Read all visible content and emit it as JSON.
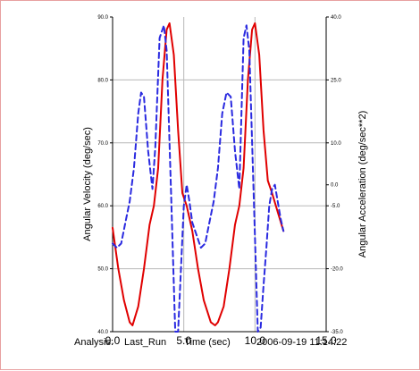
{
  "chart_data": {
    "type": "line",
    "x_axis": {
      "label": "Time (sec)",
      "ticks": [
        "0.0",
        "5.0",
        "10.0",
        "15.0"
      ],
      "range": [
        0,
        15
      ]
    },
    "y_left": {
      "label": "Angular Velocity (deg/sec)",
      "ticks": [
        "40.0",
        "50.0",
        "60.0",
        "70.0",
        "80.0",
        "90.0"
      ],
      "range": [
        40,
        90
      ]
    },
    "y_right": {
      "label": "Angular Acceleration (deg/sec**2)",
      "ticks": [
        "-35.0",
        "-20.0",
        "-5.0",
        "0.0",
        "10.0",
        "25.0",
        "40.0"
      ],
      "range": [
        -35,
        40
      ]
    },
    "grid": true,
    "series": [
      {
        "axis": "left",
        "color": "#e00000",
        "style": "solid",
        "x": [
          0.0,
          0.4,
          0.8,
          1.2,
          1.4,
          1.8,
          2.2,
          2.6,
          2.9,
          3.2,
          3.5,
          3.8,
          4.0,
          4.3,
          4.6,
          4.9,
          5.2,
          5.6,
          6.0,
          6.4,
          6.9,
          7.2,
          7.4,
          7.8,
          8.2,
          8.6,
          8.9,
          9.2,
          9.5,
          9.8,
          10.0,
          10.3,
          10.6,
          10.9,
          11.2,
          11.6,
          12.0
        ],
        "y": [
          56.5,
          50.0,
          45.0,
          41.5,
          41.0,
          44.0,
          50.0,
          57.0,
          60.0,
          66.0,
          80.0,
          88.0,
          89.0,
          84.0,
          72.0,
          62.0,
          60.0,
          56.0,
          50.0,
          45.0,
          41.5,
          41.0,
          41.5,
          44.0,
          50.0,
          57.0,
          60.0,
          66.0,
          80.0,
          88.0,
          89.0,
          84.0,
          72.0,
          64.0,
          62.0,
          59.0,
          56.0
        ]
      },
      {
        "axis": "right",
        "color": "#2a2ae0",
        "style": "dashed",
        "x": [
          0.0,
          0.3,
          0.6,
          0.9,
          1.2,
          1.5,
          1.8,
          2.0,
          2.2,
          2.5,
          2.8,
          3.0,
          3.3,
          3.6,
          3.8,
          4.1,
          4.4,
          4.6,
          4.8,
          5.0,
          5.2,
          5.4,
          5.6,
          5.9,
          6.2,
          6.5,
          6.8,
          7.1,
          7.4,
          7.7,
          8.0,
          8.3,
          8.6,
          8.9,
          9.2,
          9.4,
          9.6,
          9.9,
          10.2,
          10.4,
          10.6,
          10.8,
          11.0,
          11.2,
          11.4,
          11.6,
          11.8,
          12.0
        ],
        "y": [
          -14.0,
          -15.0,
          -14.0,
          -9.0,
          -4.0,
          4.0,
          17.0,
          22.0,
          21.0,
          8.0,
          -1.0,
          9.0,
          35.0,
          38.0,
          32.0,
          -1.0,
          -35.0,
          -35.0,
          -20.0,
          -5.0,
          0.0,
          -4.0,
          -9.0,
          -12.0,
          -15.0,
          -14.0,
          -9.0,
          -4.0,
          4.0,
          17.0,
          22.0,
          21.0,
          8.0,
          -1.0,
          35.0,
          38.0,
          32.0,
          -1.0,
          -35.0,
          -34.0,
          -24.0,
          -15.0,
          -5.0,
          -1.0,
          0.0,
          -4.0,
          -8.0,
          -11.0
        ]
      }
    ]
  },
  "footer": {
    "analysis_label": "Analysis:",
    "run_name": "Last_Run",
    "timestamp": "2006-09-19 11:14:22"
  }
}
